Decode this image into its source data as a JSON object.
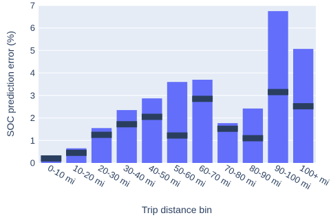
{
  "chart_data": {
    "type": "bar",
    "xlabel": "Trip distance bin",
    "ylabel": "SOC prediction error (%)",
    "ylim": [
      0,
      7
    ],
    "yticks": [
      0,
      1,
      2,
      3,
      4,
      5,
      6,
      7
    ],
    "grid": true,
    "colors": {
      "plot_bg": "#e5ecf6",
      "grid": "#ffffff",
      "bar": "#636efa",
      "marker": "#2a3f5f",
      "text": "#2a3f5f"
    },
    "categories": [
      "0-10 mi",
      "10-20 mi",
      "20-30 mi",
      "30-40 mi",
      "40-50 mi",
      "50-60 mi",
      "60-70 mi",
      "70-80 mi",
      "80-90 mi",
      "90-100 mi",
      "100+ mi"
    ],
    "series": [
      {
        "values": [
          0.2,
          0.65,
          1.55,
          2.35,
          2.87,
          3.6,
          3.7,
          1.77,
          2.42,
          6.75,
          5.07
        ]
      },
      {
        "type": "marker",
        "values": [
          0.2,
          0.45,
          1.25,
          1.72,
          2.05,
          1.22,
          2.85,
          1.52,
          1.1,
          3.15,
          2.52
        ]
      }
    ]
  }
}
